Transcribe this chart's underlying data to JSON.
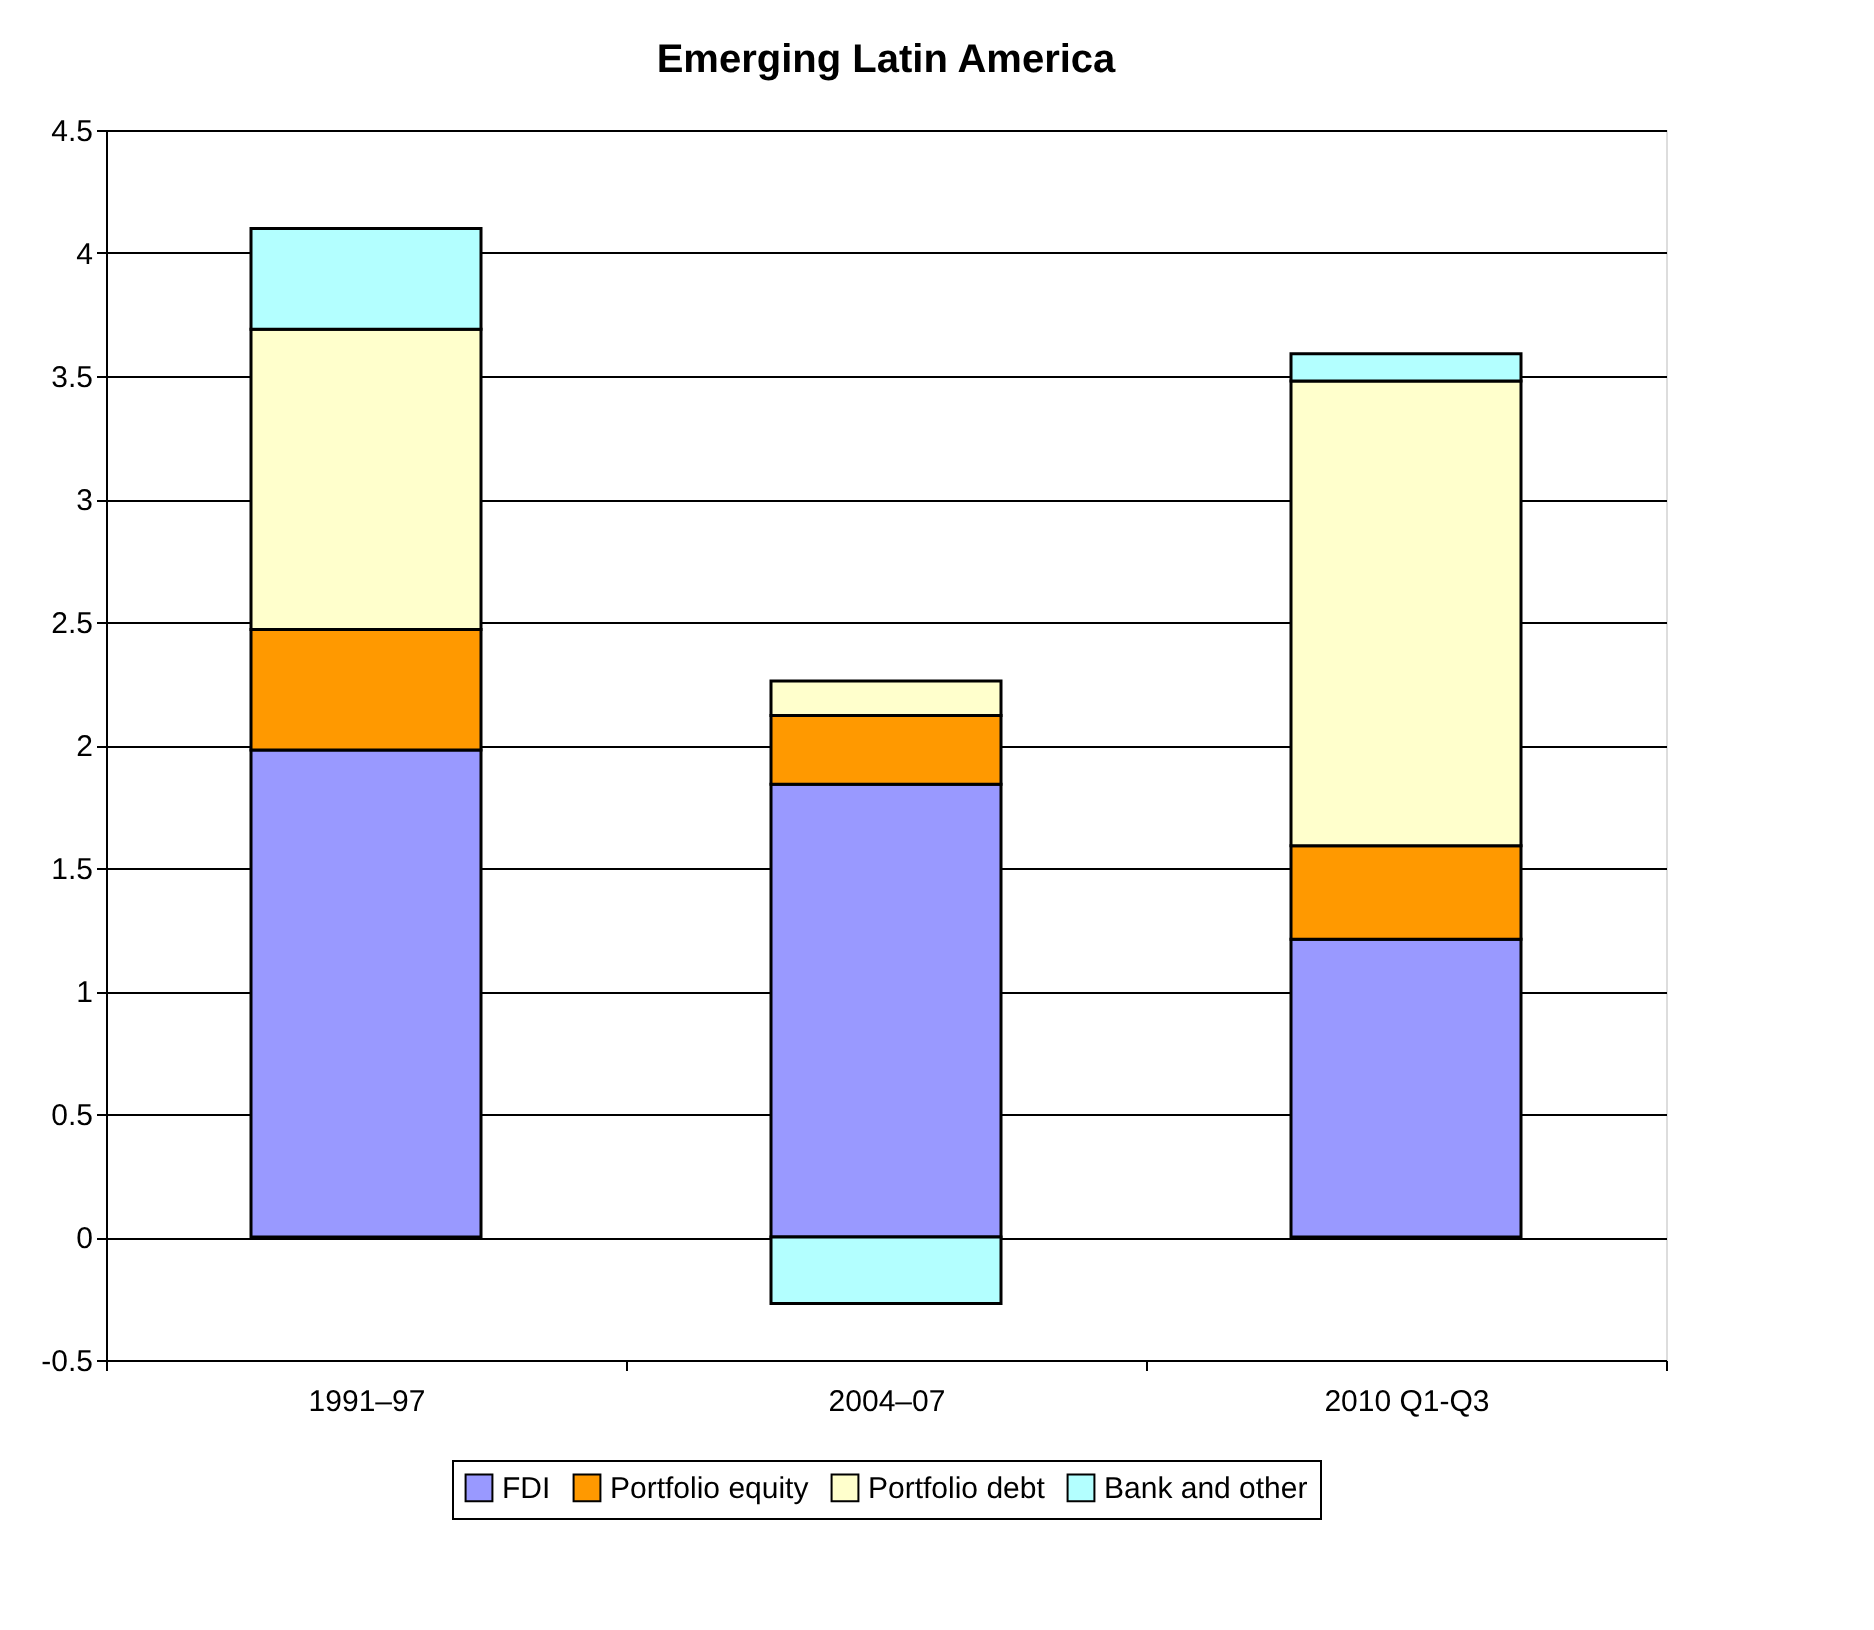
{
  "chart_data": {
    "type": "bar",
    "title": "Emerging Latin America",
    "categories": [
      "1991–97",
      "2004–07",
      "2010 Q1-Q3"
    ],
    "stacked": true,
    "series": [
      {
        "name": "FDI",
        "color": "#9999ff",
        "values": [
          1.98,
          1.84,
          1.21
        ]
      },
      {
        "name": "Portfolio equity",
        "color": "#ff9900",
        "values": [
          0.49,
          0.28,
          0.38
        ]
      },
      {
        "name": "Portfolio debt",
        "color": "#ffffcc",
        "values": [
          1.22,
          0.14,
          1.89
        ]
      },
      {
        "name": "Bank and other",
        "color": "#b3ffff",
        "values": [
          0.41,
          -0.27,
          0.11
        ]
      }
    ],
    "ylim": [
      -0.5,
      4.5
    ],
    "yticks": [
      -0.5,
      0,
      0.5,
      1,
      1.5,
      2,
      2.5,
      3,
      3.5,
      4,
      4.5
    ],
    "grid": "y",
    "legend": "bottom"
  }
}
